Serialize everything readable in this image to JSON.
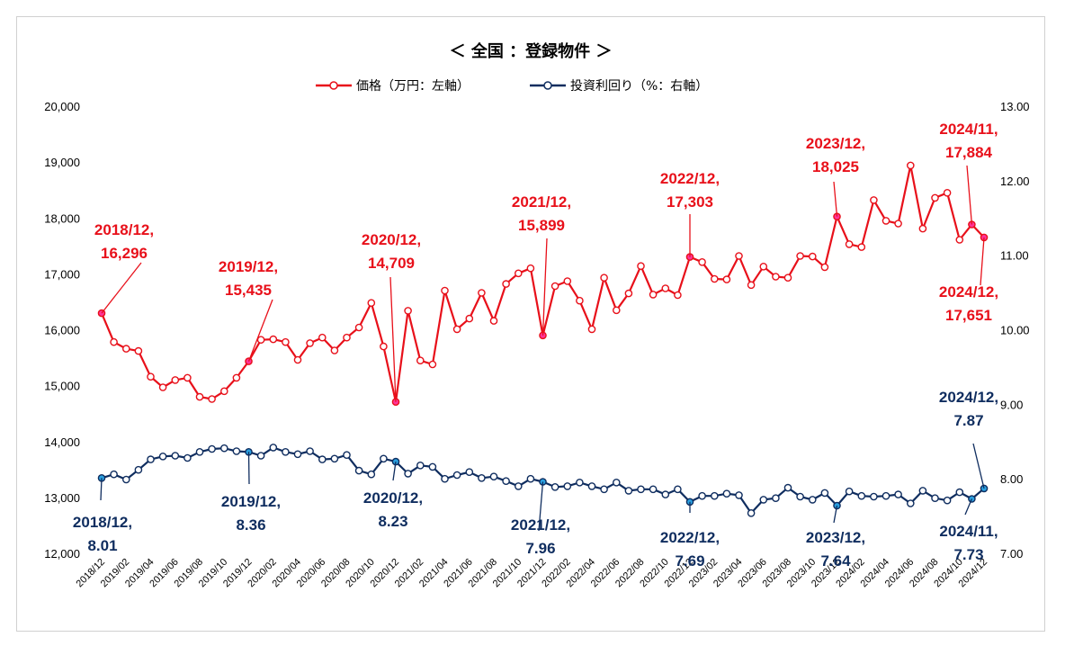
{
  "chart_data": {
    "type": "line",
    "title": "＜ 全国 ：登録物件 ＞",
    "colors": {
      "price": "#e8101a",
      "yield": "#0f2d5f",
      "price_highlight": "#ff3399",
      "yield_highlight": "#2aa0e0"
    },
    "legend": [
      {
        "name": "価格（万円：左軸）",
        "series": "price"
      },
      {
        "name": "投資利回り（%：右軸）",
        "series": "yield"
      }
    ],
    "left_axis": {
      "ylim": [
        12000,
        20000
      ],
      "ticks": [
        "12,000",
        "13,000",
        "14,000",
        "15,000",
        "16,000",
        "17,000",
        "18,000",
        "19,000",
        "20,000"
      ]
    },
    "right_axis": {
      "ylim": [
        7.0,
        13.0
      ],
      "ticks": [
        "7.00",
        "8.00",
        "9.00",
        "10.00",
        "11.00",
        "12.00",
        "13.00"
      ]
    },
    "x_tick_labels": [
      "2018/12",
      "2019/02",
      "2019/04",
      "2019/06",
      "2019/08",
      "2019/10",
      "2019/12",
      "2020/02",
      "2020/04",
      "2020/06",
      "2020/08",
      "2020/10",
      "2020/12",
      "2021/02",
      "2021/04",
      "2021/06",
      "2021/08",
      "2021/10",
      "2021/12",
      "2022/02",
      "2022/04",
      "2022/06",
      "2022/08",
      "2022/10",
      "2022/12",
      "2023/02",
      "2023/04",
      "2023/06",
      "2023/08",
      "2023/10",
      "2023/12",
      "2024/02",
      "2024/04",
      "2024/06",
      "2024/08",
      "2024/10",
      "2024/12"
    ],
    "series": [
      {
        "name": "価格（万円：左軸）",
        "axis": "left",
        "values": [
          16296,
          15780,
          15660,
          15620,
          15160,
          14970,
          15100,
          15140,
          14800,
          14760,
          14900,
          15140,
          15435,
          15820,
          15830,
          15780,
          15460,
          15760,
          15860,
          15630,
          15860,
          16040,
          16480,
          15700,
          14709,
          16340,
          15450,
          15380,
          16700,
          16010,
          16200,
          16660,
          16160,
          16820,
          17010,
          17100,
          15899,
          16780,
          16870,
          16520,
          16010,
          16930,
          16350,
          16650,
          17140,
          16630,
          16740,
          16620,
          17303,
          17210,
          16910,
          16900,
          17320,
          16800,
          17130,
          16950,
          16930,
          17320,
          17310,
          17120,
          18025,
          17530,
          17480,
          18320,
          17950,
          17900,
          18940,
          17810,
          18360,
          18450,
          17610,
          17884,
          17651
        ]
      },
      {
        "name": "投資利回り（%：右軸）",
        "axis": "right",
        "values": [
          8.01,
          8.06,
          7.99,
          8.12,
          8.26,
          8.3,
          8.31,
          8.28,
          8.36,
          8.4,
          8.41,
          8.37,
          8.36,
          8.31,
          8.42,
          8.36,
          8.33,
          8.37,
          8.26,
          8.27,
          8.32,
          8.11,
          8.06,
          8.27,
          8.23,
          8.07,
          8.18,
          8.16,
          8.0,
          8.05,
          8.09,
          8.01,
          8.03,
          7.97,
          7.9,
          8.0,
          7.96,
          7.89,
          7.9,
          7.95,
          7.9,
          7.86,
          7.95,
          7.84,
          7.86,
          7.86,
          7.79,
          7.86,
          7.69,
          7.77,
          7.77,
          7.8,
          7.78,
          7.54,
          7.72,
          7.74,
          7.88,
          7.76,
          7.72,
          7.81,
          7.64,
          7.83,
          7.77,
          7.76,
          7.77,
          7.79,
          7.67,
          7.84,
          7.74,
          7.71,
          7.82,
          7.73,
          7.87
        ]
      }
    ],
    "annotations": [
      {
        "series": "price",
        "index": 0,
        "date": "2018/12,",
        "value": "16,296"
      },
      {
        "series": "price",
        "index": 12,
        "date": "2019/12,",
        "value": "15,435"
      },
      {
        "series": "price",
        "index": 24,
        "date": "2020/12,",
        "value": "14,709"
      },
      {
        "series": "price",
        "index": 36,
        "date": "2021/12,",
        "value": "15,899"
      },
      {
        "series": "price",
        "index": 48,
        "date": "2022/12,",
        "value": "17,303"
      },
      {
        "series": "price",
        "index": 60,
        "date": "2023/12,",
        "value": "18,025"
      },
      {
        "series": "price",
        "index": 71,
        "date": "2024/11,",
        "value": "17,884"
      },
      {
        "series": "price",
        "index": 72,
        "date": "2024/12,",
        "value": "17,651"
      },
      {
        "series": "yield",
        "index": 0,
        "date": "2018/12,",
        "value": "8.01"
      },
      {
        "series": "yield",
        "index": 12,
        "date": "2019/12,",
        "value": "8.36"
      },
      {
        "series": "yield",
        "index": 24,
        "date": "2020/12,",
        "value": "8.23"
      },
      {
        "series": "yield",
        "index": 36,
        "date": "2021/12,",
        "value": "7.96"
      },
      {
        "series": "yield",
        "index": 48,
        "date": "2022/12,",
        "value": "7.69"
      },
      {
        "series": "yield",
        "index": 60,
        "date": "2023/12,",
        "value": "7.64"
      },
      {
        "series": "yield",
        "index": 71,
        "date": "2024/11,",
        "value": "7.73"
      },
      {
        "series": "yield",
        "index": 72,
        "date": "2024/12,",
        "value": "7.87"
      }
    ]
  }
}
